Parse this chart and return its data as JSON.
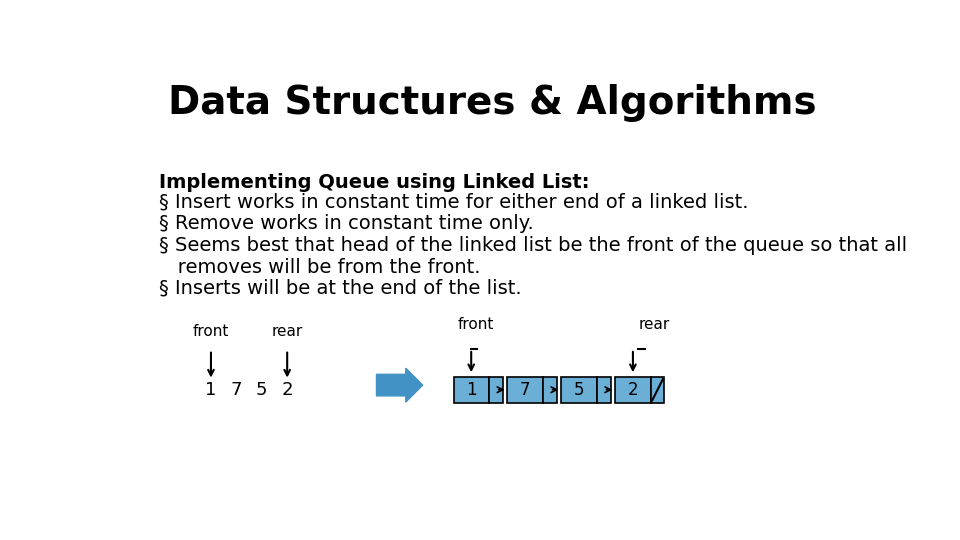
{
  "title": "Data Structures & Algorithms",
  "title_fontsize": 28,
  "title_fontweight": "bold",
  "bg_color": "#ffffff",
  "subtitle_bold": "Implementing Queue using Linked List:",
  "bullets": [
    "§ Insert works in constant time for either end of a linked list.",
    "§ Remove works in constant time only.",
    "§ Seems best that head of the linked list be the front of the queue so that all\n   removes will be from the front.",
    "§ Inserts will be at the end of the list."
  ],
  "bullet_fontsize": 14,
  "subtitle_fontsize": 14,
  "array_values": [
    "1",
    "7",
    "5",
    "2"
  ],
  "node_color": "#6baed6",
  "node_edge_color": "#000000",
  "big_arrow_color": "#4292c6",
  "text_color": "#000000",
  "front_label": "front",
  "rear_label": "rear"
}
